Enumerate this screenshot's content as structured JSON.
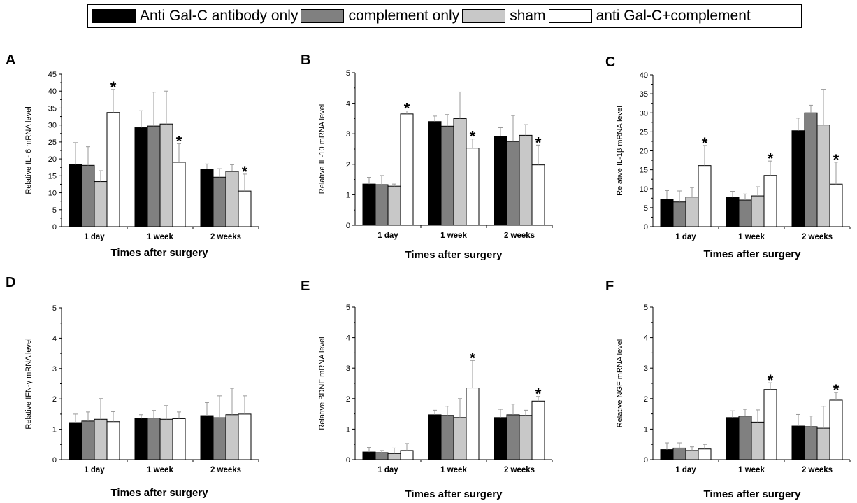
{
  "legend": [
    {
      "label": "Anti Gal-C antibody only",
      "color": "#000000"
    },
    {
      "label": "complement only",
      "color": "#808080"
    },
    {
      "label": "sham",
      "color": "#c8c8c8"
    },
    {
      "label": "anti Gal-C+complement",
      "color": "#ffffff"
    }
  ],
  "chart_data": [
    {
      "panel": "A",
      "type": "bar",
      "ylabel": "Relative IL- 6 mRNA level",
      "xlabel": "Times after surgery",
      "categories": [
        "1 day",
        "1 week",
        "2 weeks"
      ],
      "ylim": [
        0,
        45
      ],
      "yticks": [
        "0",
        "5",
        "10",
        "15",
        "20",
        "25",
        "30",
        "35",
        "40",
        "45"
      ],
      "series": [
        {
          "name": "Anti Gal-C antibody only",
          "values": [
            18.3,
            29.2,
            17.0
          ],
          "errors": [
            6.5,
            5.0,
            1.5
          ]
        },
        {
          "name": "complement only",
          "values": [
            18.1,
            29.7,
            14.6
          ],
          "errors": [
            5.5,
            10.0,
            2.5
          ]
        },
        {
          "name": "sham",
          "values": [
            13.3,
            30.3,
            16.3
          ],
          "errors": [
            3.2,
            9.7,
            2.0
          ]
        },
        {
          "name": "anti Gal-C+complement",
          "values": [
            33.7,
            19.0,
            10.5
          ],
          "errors": [
            6.8,
            5.5,
            5.0
          ]
        }
      ],
      "significant": [
        [
          3,
          0
        ],
        [
          3,
          1
        ],
        [
          3,
          2
        ]
      ]
    },
    {
      "panel": "B",
      "type": "bar",
      "ylabel": "Relative IL-10 mRNA level",
      "xlabel": "Times after surgery",
      "categories": [
        "1 day",
        "1 week",
        "2 weeks"
      ],
      "ylim": [
        0,
        5
      ],
      "yticks": [
        "0",
        "1",
        "2",
        "3",
        "4",
        "5"
      ],
      "series": [
        {
          "name": "Anti Gal-C antibody only",
          "values": [
            1.35,
            3.4,
            2.92
          ],
          "errors": [
            0.22,
            0.18,
            0.28
          ]
        },
        {
          "name": "complement only",
          "values": [
            1.33,
            3.25,
            2.75
          ],
          "errors": [
            0.3,
            0.38,
            0.85
          ]
        },
        {
          "name": "sham",
          "values": [
            1.28,
            3.5,
            2.95
          ],
          "errors": [
            0.07,
            0.87,
            0.35
          ]
        },
        {
          "name": "anti Gal-C+complement",
          "values": [
            3.65,
            2.53,
            1.98
          ],
          "errors": [
            0.1,
            0.3,
            0.65
          ]
        }
      ],
      "significant": [
        [
          3,
          0
        ],
        [
          3,
          1
        ],
        [
          3,
          2
        ]
      ]
    },
    {
      "panel": "C",
      "type": "bar",
      "ylabel": "Relative  IL-1β mRNA level",
      "xlabel": "Times after surgery",
      "categories": [
        "1 day",
        "1 week",
        "2 weeks"
      ],
      "ylim": [
        0,
        40
      ],
      "yticks": [
        "0",
        "5",
        "10",
        "15",
        "20",
        "25",
        "30",
        "35",
        "40"
      ],
      "series": [
        {
          "name": "Anti Gal-C antibody only",
          "values": [
            7.2,
            7.7,
            25.3
          ],
          "errors": [
            2.3,
            1.6,
            3.3
          ]
        },
        {
          "name": "complement only",
          "values": [
            6.5,
            7.0,
            30.0
          ],
          "errors": [
            2.9,
            1.6,
            2.0
          ]
        },
        {
          "name": "sham",
          "values": [
            7.8,
            8.1,
            26.8
          ],
          "errors": [
            2.5,
            2.4,
            9.4
          ]
        },
        {
          "name": "anti Gal-C+complement",
          "values": [
            16.1,
            13.5,
            11.2
          ],
          "errors": [
            5.3,
            3.8,
            5.8
          ]
        }
      ],
      "significant": [
        [
          3,
          0
        ],
        [
          3,
          1
        ],
        [
          3,
          2
        ]
      ]
    },
    {
      "panel": "D",
      "type": "bar",
      "ylabel": "Relative IFN-γ mRNA level",
      "xlabel": "Times after surgery",
      "categories": [
        "1 day",
        "1 week",
        "2 weeks"
      ],
      "ylim": [
        0,
        5
      ],
      "yticks": [
        "0",
        "1",
        "2",
        "3",
        "4",
        "5"
      ],
      "series": [
        {
          "name": "Anti Gal-C antibody only",
          "values": [
            1.22,
            1.35,
            1.45
          ],
          "errors": [
            0.28,
            0.13,
            0.43
          ]
        },
        {
          "name": "complement only",
          "values": [
            1.27,
            1.37,
            1.38
          ],
          "errors": [
            0.3,
            0.25,
            0.72
          ]
        },
        {
          "name": "sham",
          "values": [
            1.33,
            1.33,
            1.48
          ],
          "errors": [
            0.68,
            0.45,
            0.87
          ]
        },
        {
          "name": "anti Gal-C+complement",
          "values": [
            1.25,
            1.35,
            1.5
          ],
          "errors": [
            0.33,
            0.22,
            0.6
          ]
        }
      ],
      "significant": []
    },
    {
      "panel": "E",
      "type": "bar",
      "ylabel": "Relative BDNF mRNA level",
      "xlabel": "Times after surgery",
      "categories": [
        "1 day",
        "1 week",
        "2 weeks"
      ],
      "ylim": [
        0,
        5
      ],
      "yticks": [
        "0",
        "1",
        "2",
        "3",
        "4",
        "5"
      ],
      "series": [
        {
          "name": "Anti Gal-C antibody only",
          "values": [
            0.25,
            1.47,
            1.38
          ],
          "errors": [
            0.15,
            0.15,
            0.27
          ]
        },
        {
          "name": "complement only",
          "values": [
            0.23,
            1.45,
            1.47
          ],
          "errors": [
            0.07,
            0.3,
            0.35
          ]
        },
        {
          "name": "sham",
          "values": [
            0.2,
            1.38,
            1.45
          ],
          "errors": [
            0.18,
            0.62,
            0.17
          ]
        },
        {
          "name": "anti Gal-C+complement",
          "values": [
            0.3,
            2.35,
            1.92
          ],
          "errors": [
            0.23,
            0.9,
            0.15
          ]
        }
      ],
      "significant": [
        [
          3,
          1
        ],
        [
          3,
          2
        ]
      ]
    },
    {
      "panel": "F",
      "type": "bar",
      "ylabel": "Relative NGF mRNA level",
      "xlabel": "Times after surgery",
      "categories": [
        "1 day",
        "1 week",
        "2 weeks"
      ],
      "ylim": [
        0,
        5
      ],
      "yticks": [
        "0",
        "1",
        "2",
        "3",
        "4",
        "5"
      ],
      "series": [
        {
          "name": "Anti Gal-C antibody only",
          "values": [
            0.33,
            1.38,
            1.1
          ],
          "errors": [
            0.22,
            0.22,
            0.38
          ]
        },
        {
          "name": "complement only",
          "values": [
            0.38,
            1.43,
            1.08
          ],
          "errors": [
            0.17,
            0.22,
            0.35
          ]
        },
        {
          "name": "sham",
          "values": [
            0.3,
            1.23,
            1.03
          ],
          "errors": [
            0.12,
            0.4,
            0.72
          ]
        },
        {
          "name": "anti Gal-C+complement",
          "values": [
            0.35,
            2.3,
            1.95
          ],
          "errors": [
            0.15,
            0.22,
            0.25
          ]
        }
      ],
      "significant": [
        [
          3,
          1
        ],
        [
          3,
          2
        ]
      ]
    }
  ]
}
